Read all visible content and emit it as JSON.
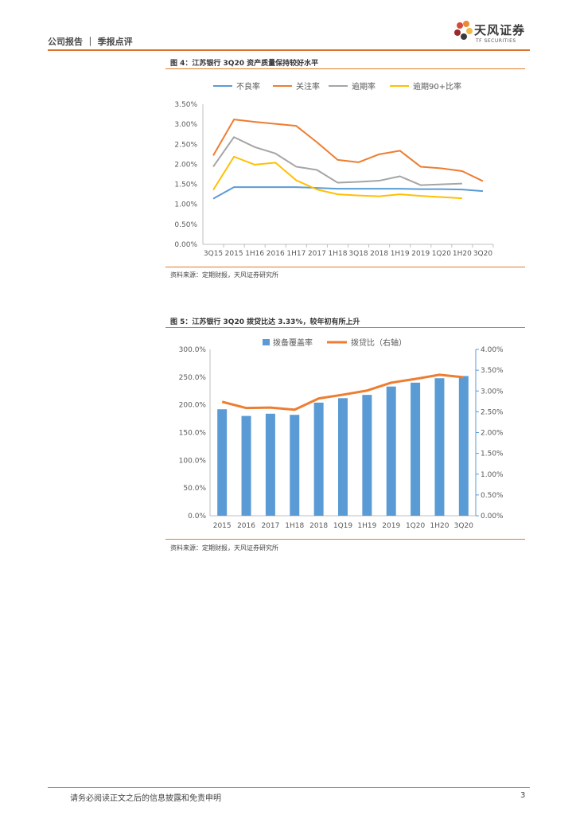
{
  "header": {
    "left": "公司报告 ｜ 季报点评"
  },
  "logo": {
    "cn": "天风证券",
    "en": "TF SECURITIES"
  },
  "footer": {
    "disclaimer": "请务必阅读正文之后的信息披露和免责申明",
    "page": "3"
  },
  "colors": {
    "accent": "#e07b2a",
    "npl": "#5b9bd5",
    "attention": "#ed7d31",
    "overdue": "#a5a5a5",
    "overdue90": "#ffc000",
    "bar": "#5b9bd5",
    "loan_ratio": "#ed7d31"
  },
  "chart_data": [
    {
      "type": "line",
      "title": "图 4：江苏银行 3Q20 资产质量保持较好水平",
      "source": "资料来源：定期财报，天风证券研究所",
      "categories": [
        "3Q15",
        "2015",
        "1H16",
        "2016",
        "1H17",
        "2017",
        "1H18",
        "3Q18",
        "2018",
        "1H19",
        "2019",
        "1Q20",
        "1H20",
        "3Q20"
      ],
      "ylim": [
        0,
        3.5
      ],
      "yticks": [
        "0.00%",
        "0.50%",
        "1.00%",
        "1.50%",
        "2.00%",
        "2.50%",
        "3.00%",
        "3.50%"
      ],
      "legend_position": "top",
      "grid": false,
      "series": [
        {
          "name": "不良率",
          "values": [
            1.14,
            1.43,
            1.43,
            1.43,
            1.43,
            1.41,
            1.39,
            1.39,
            1.39,
            1.39,
            1.38,
            1.38,
            1.37,
            1.33
          ]
        },
        {
          "name": "关注率",
          "values": [
            2.22,
            3.12,
            3.06,
            3.01,
            2.96,
            2.55,
            2.11,
            2.05,
            2.25,
            2.34,
            1.94,
            1.9,
            1.83,
            1.58
          ]
        },
        {
          "name": "逾期率",
          "values": [
            1.94,
            2.68,
            2.43,
            2.27,
            1.94,
            1.86,
            1.54,
            1.56,
            1.59,
            1.7,
            1.48,
            1.5,
            1.52,
            null
          ]
        },
        {
          "name": "逾期90+比率",
          "values": [
            1.36,
            2.19,
            1.99,
            2.04,
            1.6,
            1.37,
            1.25,
            1.22,
            1.2,
            1.25,
            1.21,
            1.18,
            1.15,
            null
          ]
        }
      ]
    },
    {
      "type": "bar",
      "title": "图 5：江苏银行 3Q20 拨贷比达 3.33%，较年初有所上升",
      "source": "资料来源：定期财报，天风证券研究所",
      "categories": [
        "2015",
        "2016",
        "2017",
        "1H18",
        "2018",
        "1Q19",
        "1H19",
        "2019",
        "1Q20",
        "1H20",
        "3Q20"
      ],
      "ylim": [
        0,
        300
      ],
      "yticks": [
        "0.0%",
        "50.0%",
        "100.0%",
        "150.0%",
        "200.0%",
        "250.0%",
        "300.0%"
      ],
      "y2lim": [
        0,
        4
      ],
      "y2ticks": [
        "0.00%",
        "0.50%",
        "1.00%",
        "1.50%",
        "2.00%",
        "2.50%",
        "3.00%",
        "3.50%",
        "4.00%"
      ],
      "legend_position": "top",
      "grid": false,
      "series": [
        {
          "name": "拨备覆盖率",
          "type": "bar",
          "axis": "left",
          "values": [
            192,
            180,
            184,
            182,
            204,
            212,
            218,
            233,
            240,
            248,
            252
          ]
        },
        {
          "name": "拨贷比（右轴）",
          "type": "line",
          "axis": "right",
          "values": [
            2.74,
            2.59,
            2.6,
            2.55,
            2.82,
            2.91,
            3.01,
            3.2,
            3.29,
            3.39,
            3.33
          ]
        }
      ]
    }
  ]
}
